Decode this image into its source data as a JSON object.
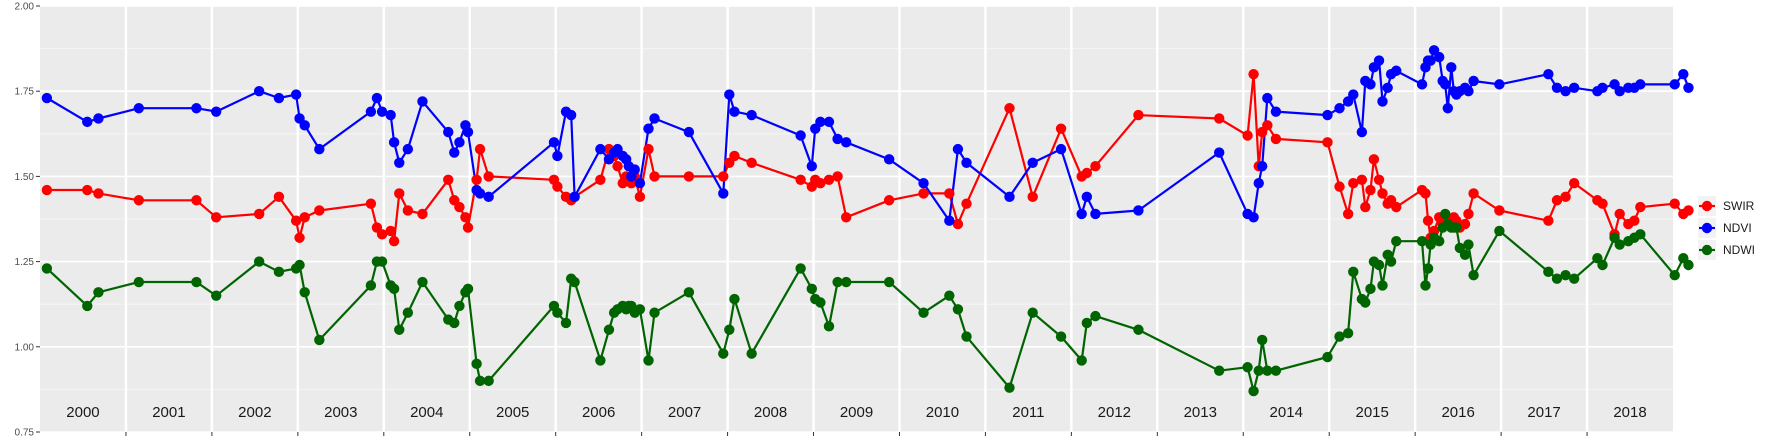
{
  "chart_data": {
    "type": "line",
    "title": "",
    "xlabel": "",
    "ylabel": "",
    "ylim": [
      0.75,
      2.0
    ],
    "xlim": [
      2000.0,
      2019.0
    ],
    "y_ticks": [
      "0.75",
      "1.00",
      "1.25",
      "1.50",
      "1.75",
      "2.00"
    ],
    "y_tick_values": [
      0.75,
      1.0,
      1.25,
      1.5,
      1.75,
      2.0
    ],
    "year_labels": [
      "2000",
      "2001",
      "2002",
      "2003",
      "2004",
      "2005",
      "2006",
      "2007",
      "2008",
      "2009",
      "2010",
      "2011",
      "2012",
      "2013",
      "2014",
      "2015",
      "2016",
      "2017",
      "2018"
    ],
    "legend_position": "right",
    "grid": true,
    "series": [
      {
        "name": "SWIR",
        "color": "#ff0000",
        "x": [
          2000.08,
          2000.55,
          2000.68,
          2001.15,
          2001.82,
          2002.05,
          2002.55,
          2002.78,
          2002.98,
          2003.02,
          2003.08,
          2003.25,
          2003.85,
          2003.92,
          2003.98,
          2004.08,
          2004.12,
          2004.18,
          2004.28,
          2004.45,
          2004.75,
          2004.82,
          2004.88,
          2004.95,
          2004.98,
          2005.08,
          2005.12,
          2005.22,
          2005.98,
          2006.02,
          2006.12,
          2006.18,
          2006.22,
          2006.52,
          2006.62,
          2006.68,
          2006.72,
          2006.78,
          2006.82,
          2006.85,
          2006.88,
          2006.92,
          2006.98,
          2007.08,
          2007.15,
          2007.55,
          2007.95,
          2008.02,
          2008.08,
          2008.28,
          2008.85,
          2008.98,
          2009.02,
          2009.08,
          2009.18,
          2009.28,
          2009.38,
          2009.88,
          2010.28,
          2010.58,
          2010.68,
          2010.78,
          2011.28,
          2011.55,
          2011.88,
          2012.12,
          2012.18,
          2012.28,
          2012.78,
          2013.72,
          2014.05,
          2014.12,
          2014.18,
          2014.22,
          2014.28,
          2014.38,
          2014.98,
          2015.12,
          2015.22,
          2015.28,
          2015.38,
          2015.42,
          2015.48,
          2015.52,
          2015.58,
          2015.62,
          2015.68,
          2015.72,
          2015.78,
          2016.08,
          2016.12,
          2016.15,
          2016.18,
          2016.22,
          2016.28,
          2016.32,
          2016.35,
          2016.38,
          2016.42,
          2016.45,
          2016.48,
          2016.52,
          2016.58,
          2016.62,
          2016.68,
          2016.98,
          2017.55,
          2017.65,
          2017.75,
          2017.85,
          2018.12,
          2018.18,
          2018.32,
          2018.38,
          2018.48,
          2018.55,
          2018.62,
          2019.02,
          2019.12,
          2019.18
        ],
        "values": [
          1.46,
          1.46,
          1.45,
          1.43,
          1.43,
          1.38,
          1.39,
          1.44,
          1.37,
          1.32,
          1.38,
          1.4,
          1.42,
          1.35,
          1.33,
          1.34,
          1.31,
          1.45,
          1.4,
          1.39,
          1.49,
          1.43,
          1.41,
          1.38,
          1.35,
          1.49,
          1.58,
          1.5,
          1.49,
          1.47,
          1.44,
          1.43,
          1.44,
          1.49,
          1.58,
          1.56,
          1.53,
          1.48,
          1.5,
          1.49,
          1.48,
          1.5,
          1.44,
          1.58,
          1.5,
          1.5,
          1.5,
          1.54,
          1.56,
          1.54,
          1.49,
          1.47,
          1.49,
          1.48,
          1.49,
          1.5,
          1.38,
          1.43,
          1.45,
          1.45,
          1.36,
          1.42,
          1.7,
          1.44,
          1.64,
          1.5,
          1.51,
          1.53,
          1.68,
          1.67,
          1.62,
          1.8,
          1.53,
          1.63,
          1.65,
          1.61,
          1.6,
          1.47,
          1.39,
          1.48,
          1.49,
          1.41,
          1.46,
          1.55,
          1.49,
          1.45,
          1.42,
          1.43,
          1.41,
          1.46,
          1.45,
          1.37,
          1.32,
          1.34,
          1.38,
          1.36,
          1.38,
          1.36,
          1.37,
          1.38,
          1.37,
          1.35,
          1.36,
          1.39,
          1.45,
          1.4,
          1.37,
          1.43,
          1.44,
          1.48,
          1.43,
          1.42,
          1.33,
          1.39,
          1.36,
          1.37,
          1.41,
          1.42,
          1.39,
          1.4
        ]
      },
      {
        "name": "NDVI",
        "color": "#0000ff",
        "x": [
          2000.08,
          2000.55,
          2000.68,
          2001.15,
          2001.82,
          2002.05,
          2002.55,
          2002.78,
          2002.98,
          2003.02,
          2003.08,
          2003.25,
          2003.85,
          2003.92,
          2003.98,
          2004.08,
          2004.12,
          2004.18,
          2004.28,
          2004.45,
          2004.75,
          2004.82,
          2004.88,
          2004.95,
          2004.98,
          2005.08,
          2005.12,
          2005.22,
          2005.98,
          2006.02,
          2006.12,
          2006.18,
          2006.22,
          2006.52,
          2006.62,
          2006.68,
          2006.72,
          2006.78,
          2006.82,
          2006.85,
          2006.88,
          2006.92,
          2006.98,
          2007.08,
          2007.15,
          2007.55,
          2007.95,
          2008.02,
          2008.08,
          2008.28,
          2008.85,
          2008.98,
          2009.02,
          2009.08,
          2009.18,
          2009.28,
          2009.38,
          2009.88,
          2010.28,
          2010.58,
          2010.68,
          2010.78,
          2011.28,
          2011.55,
          2011.88,
          2012.12,
          2012.18,
          2012.28,
          2012.78,
          2013.72,
          2014.05,
          2014.12,
          2014.18,
          2014.22,
          2014.28,
          2014.38,
          2014.98,
          2015.12,
          2015.22,
          2015.28,
          2015.38,
          2015.42,
          2015.48,
          2015.52,
          2015.58,
          2015.62,
          2015.68,
          2015.72,
          2015.78,
          2016.08,
          2016.12,
          2016.15,
          2016.18,
          2016.22,
          2016.28,
          2016.32,
          2016.35,
          2016.38,
          2016.42,
          2016.45,
          2016.48,
          2016.52,
          2016.58,
          2016.62,
          2016.68,
          2016.98,
          2017.55,
          2017.65,
          2017.75,
          2017.85,
          2018.12,
          2018.18,
          2018.32,
          2018.38,
          2018.48,
          2018.55,
          2018.62,
          2019.02,
          2019.12,
          2019.18
        ],
        "values": [
          1.73,
          1.66,
          1.67,
          1.7,
          1.7,
          1.69,
          1.75,
          1.73,
          1.74,
          1.67,
          1.65,
          1.58,
          1.69,
          1.73,
          1.69,
          1.68,
          1.6,
          1.54,
          1.58,
          1.72,
          1.63,
          1.57,
          1.6,
          1.65,
          1.63,
          1.46,
          1.45,
          1.44,
          1.6,
          1.56,
          1.69,
          1.68,
          1.44,
          1.58,
          1.55,
          1.57,
          1.58,
          1.56,
          1.55,
          1.53,
          1.5,
          1.52,
          1.48,
          1.64,
          1.67,
          1.63,
          1.45,
          1.74,
          1.69,
          1.68,
          1.62,
          1.53,
          1.64,
          1.66,
          1.66,
          1.61,
          1.6,
          1.55,
          1.48,
          1.37,
          1.58,
          1.54,
          1.44,
          1.54,
          1.58,
          1.39,
          1.44,
          1.39,
          1.4,
          1.57,
          1.39,
          1.38,
          1.48,
          1.53,
          1.73,
          1.69,
          1.68,
          1.7,
          1.72,
          1.74,
          1.63,
          1.78,
          1.77,
          1.82,
          1.84,
          1.72,
          1.76,
          1.8,
          1.81,
          1.77,
          1.82,
          1.84,
          1.84,
          1.87,
          1.85,
          1.78,
          1.77,
          1.7,
          1.82,
          1.75,
          1.74,
          1.75,
          1.76,
          1.75,
          1.78,
          1.77,
          1.8,
          1.76,
          1.75,
          1.76,
          1.75,
          1.76,
          1.77,
          1.75,
          1.76,
          1.76,
          1.77,
          1.77,
          1.8,
          1.76
        ]
      },
      {
        "name": "NDWI",
        "color": "#006400",
        "x": [
          2000.08,
          2000.55,
          2000.68,
          2001.15,
          2001.82,
          2002.05,
          2002.55,
          2002.78,
          2002.98,
          2003.02,
          2003.08,
          2003.25,
          2003.85,
          2003.92,
          2003.98,
          2004.08,
          2004.12,
          2004.18,
          2004.28,
          2004.45,
          2004.75,
          2004.82,
          2004.88,
          2004.95,
          2004.98,
          2005.08,
          2005.12,
          2005.22,
          2005.98,
          2006.02,
          2006.12,
          2006.18,
          2006.22,
          2006.52,
          2006.62,
          2006.68,
          2006.72,
          2006.78,
          2006.82,
          2006.85,
          2006.88,
          2006.92,
          2006.98,
          2007.08,
          2007.15,
          2007.55,
          2007.95,
          2008.02,
          2008.08,
          2008.28,
          2008.85,
          2008.98,
          2009.02,
          2009.08,
          2009.18,
          2009.28,
          2009.38,
          2009.88,
          2010.28,
          2010.58,
          2010.68,
          2010.78,
          2011.28,
          2011.55,
          2011.88,
          2012.12,
          2012.18,
          2012.28,
          2012.78,
          2013.72,
          2014.05,
          2014.12,
          2014.18,
          2014.22,
          2014.28,
          2014.38,
          2014.98,
          2015.12,
          2015.22,
          2015.28,
          2015.38,
          2015.42,
          2015.48,
          2015.52,
          2015.58,
          2015.62,
          2015.68,
          2015.72,
          2015.78,
          2016.08,
          2016.12,
          2016.15,
          2016.18,
          2016.22,
          2016.28,
          2016.32,
          2016.35,
          2016.38,
          2016.42,
          2016.45,
          2016.48,
          2016.52,
          2016.58,
          2016.62,
          2016.68,
          2016.98,
          2017.55,
          2017.65,
          2017.75,
          2017.85,
          2018.12,
          2018.18,
          2018.32,
          2018.38,
          2018.48,
          2018.55,
          2018.62,
          2019.02,
          2019.12,
          2019.18
        ],
        "values": [
          1.23,
          1.12,
          1.16,
          1.19,
          1.19,
          1.15,
          1.25,
          1.22,
          1.23,
          1.24,
          1.16,
          1.02,
          1.18,
          1.25,
          1.25,
          1.18,
          1.17,
          1.05,
          1.1,
          1.19,
          1.08,
          1.07,
          1.12,
          1.16,
          1.17,
          0.95,
          0.9,
          0.9,
          1.12,
          1.1,
          1.07,
          1.2,
          1.19,
          0.96,
          1.05,
          1.1,
          1.11,
          1.12,
          1.11,
          1.12,
          1.12,
          1.1,
          1.11,
          0.96,
          1.1,
          1.16,
          0.98,
          1.05,
          1.14,
          0.98,
          1.23,
          1.17,
          1.14,
          1.13,
          1.06,
          1.19,
          1.19,
          1.19,
          1.1,
          1.15,
          1.11,
          1.03,
          0.88,
          1.1,
          1.03,
          0.96,
          1.07,
          1.09,
          1.05,
          0.93,
          0.94,
          0.87,
          0.93,
          1.02,
          0.93,
          0.93,
          0.97,
          1.03,
          1.04,
          1.22,
          1.14,
          1.13,
          1.17,
          1.25,
          1.24,
          1.18,
          1.27,
          1.25,
          1.31,
          1.31,
          1.18,
          1.23,
          1.3,
          1.32,
          1.31,
          1.35,
          1.39,
          1.36,
          1.35,
          1.35,
          1.35,
          1.29,
          1.27,
          1.3,
          1.21,
          1.34,
          1.22,
          1.2,
          1.21,
          1.2,
          1.26,
          1.24,
          1.32,
          1.3,
          1.31,
          1.32,
          1.33,
          1.21,
          1.26,
          1.24
        ]
      }
    ]
  }
}
